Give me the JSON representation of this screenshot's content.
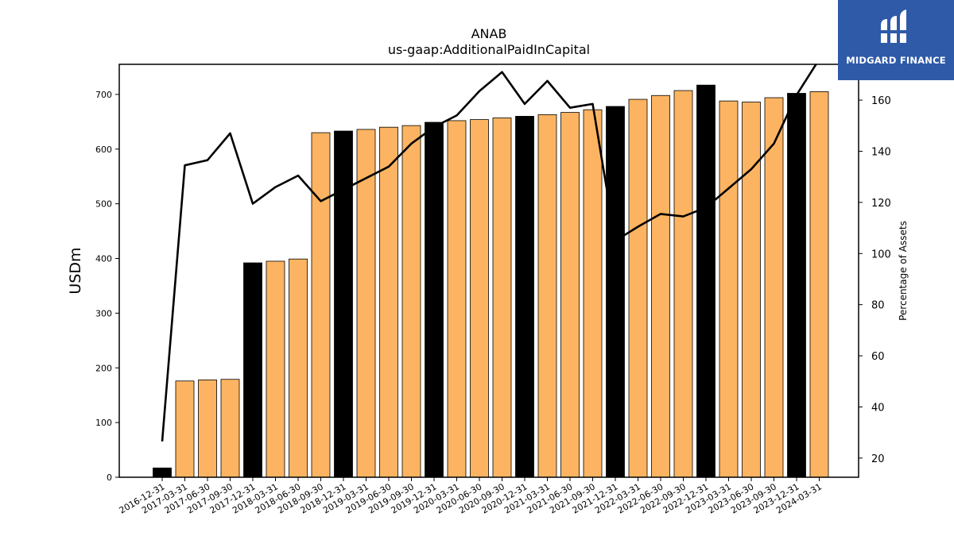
{
  "chart_data": {
    "type": "bar",
    "title": "ANAB",
    "subtitle": "us-gaap:AdditionalPaidInCapital",
    "ylabel": "USDm",
    "y2label": "Percentage of Assets",
    "ylim": [
      0,
      755
    ],
    "y2lim": [
      12.5,
      174
    ],
    "yticks": [
      0,
      100,
      200,
      300,
      400,
      500,
      600,
      700
    ],
    "y2ticks": [
      20,
      40,
      60,
      80,
      100,
      120,
      140,
      160
    ],
    "categories": [
      "2016-12-31",
      "2017-03-31",
      "2017-06-30",
      "2017-09-30",
      "2017-12-31",
      "2018-03-31",
      "2018-06-30",
      "2018-09-30",
      "2018-12-31",
      "2019-03-31",
      "2019-06-30",
      "2019-09-30",
      "2019-12-31",
      "2020-03-31",
      "2020-06-30",
      "2020-09-30",
      "2020-12-31",
      "2021-03-31",
      "2021-06-30",
      "2021-09-30",
      "2021-12-31",
      "2022-03-31",
      "2022-06-30",
      "2022-09-30",
      "2022-12-31",
      "2023-03-31",
      "2023-06-30",
      "2023-09-30",
      "2023-12-31",
      "2024-03-31"
    ],
    "series": [
      {
        "type": "bar",
        "values": [
          17,
          176,
          178,
          179,
          392,
          395,
          399,
          630,
          633,
          636,
          640,
          643,
          649,
          652,
          654,
          657,
          660,
          663,
          667,
          672,
          678,
          691,
          698,
          707,
          717,
          688,
          686,
          694,
          702,
          705
        ],
        "annual_flags": [
          true,
          false,
          false,
          false,
          true,
          false,
          false,
          false,
          true,
          false,
          false,
          false,
          true,
          false,
          false,
          false,
          true,
          false,
          false,
          false,
          true,
          false,
          false,
          false,
          true,
          false,
          false,
          false,
          true,
          false
        ]
      },
      {
        "type": "line",
        "axis": "right",
        "values": [
          26.5,
          134.5,
          136.5,
          147.0,
          119.5,
          126.0,
          130.5,
          120.5,
          125.0,
          129.5,
          134.0,
          143.0,
          149.5,
          154.0,
          163.5,
          171.0,
          158.5,
          167.5,
          157.0,
          158.5,
          105.0,
          110.5,
          115.5,
          114.5,
          118.0,
          125.5,
          133.0,
          143.0,
          162.0,
          176.0
        ]
      }
    ],
    "colors": {
      "annual_bar": "#000000",
      "quarter_bar": "#fdb462",
      "line": "#000000"
    },
    "grid": false
  },
  "branding": {
    "name": "MIDGARD FINANCE",
    "background": "#2e5aa8"
  }
}
